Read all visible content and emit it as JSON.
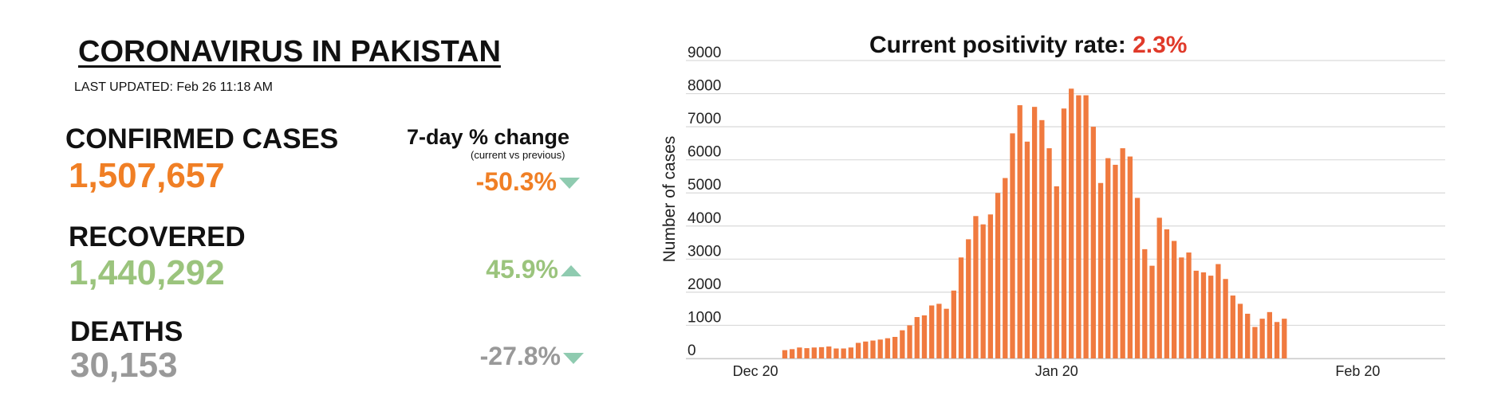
{
  "header": {
    "title": "CORONAVIRUS IN PAKISTAN",
    "last_updated": "LAST UPDATED: Feb 26 11:18 AM"
  },
  "change_header": {
    "label": "7-day % change",
    "sublabel": "(current vs previous)"
  },
  "stats": [
    {
      "label": "CONFIRMED CASES",
      "value": "1,507,657",
      "change": "-50.3%",
      "direction": "down",
      "color": "#f07f25"
    },
    {
      "label": "RECOVERED",
      "value": "1,440,292",
      "change": "45.9%",
      "direction": "up",
      "color": "#9bc47d"
    },
    {
      "label": "DEATHS",
      "value": "30,153",
      "change": "-27.8%",
      "direction": "down",
      "color": "#999999"
    }
  ],
  "colors": {
    "bar": "#f07a3f",
    "positivity": "#e03a2a",
    "arrow": "#8fcbb0",
    "grid": "#d9d9d9"
  },
  "chart_data": {
    "type": "bar",
    "title_prefix": "Current positivity rate: ",
    "title_value": "2.3%",
    "ylabel": "Number of cases",
    "xlabel": "",
    "ylim": [
      0,
      9000
    ],
    "yticks": [
      "0",
      "1000",
      "2000",
      "3000",
      "4000",
      "5000",
      "6000",
      "7000",
      "8000",
      "9000"
    ],
    "xtick_labels": [
      {
        "label": "Dec 20",
        "index": 0
      },
      {
        "label": "Jan 20",
        "index": 41
      },
      {
        "label": "Feb 20",
        "index": 82
      }
    ],
    "grid": true,
    "values": [
      0,
      0,
      0,
      0,
      250,
      280,
      330,
      310,
      330,
      340,
      360,
      300,
      300,
      330,
      470,
      510,
      540,
      570,
      610,
      650,
      850,
      1000,
      1250,
      1300,
      1600,
      1650,
      1500,
      2050,
      3050,
      3600,
      4300,
      4050,
      4350,
      5000,
      5450,
      6800,
      7650,
      6550,
      7600,
      7200,
      6350,
      5200,
      7550,
      8150,
      7950,
      7950,
      7000,
      5300,
      6050,
      5850,
      6350,
      6100,
      4850,
      3300,
      2800,
      4250,
      3900,
      3550,
      3050,
      3200,
      2650,
      2600,
      2500,
      2850,
      2400,
      1900,
      1650,
      1350,
      950,
      1200,
      1400,
      1100,
      1200
    ]
  }
}
